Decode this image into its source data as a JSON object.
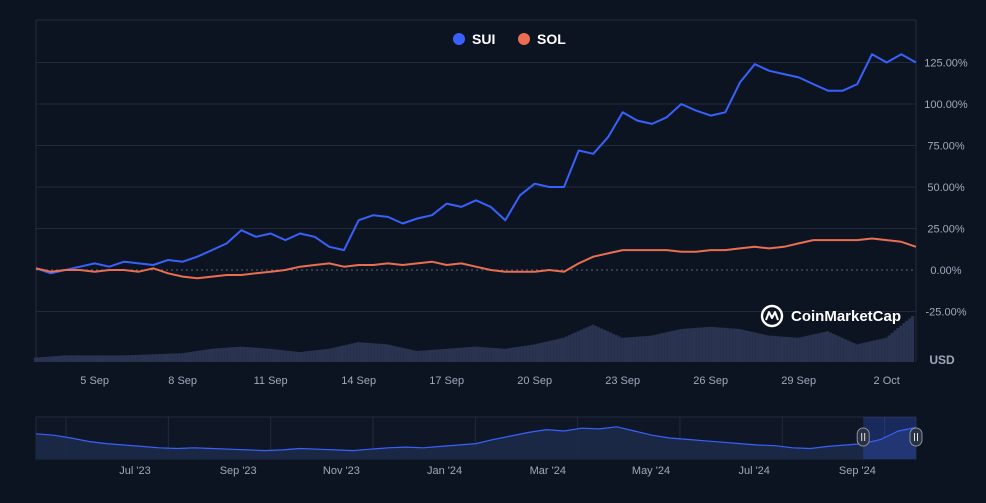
{
  "colors": {
    "background": "#0d1421",
    "grid": "#222b3d",
    "text": "#a1a7bb",
    "legend_text": "#ffffff",
    "sui": "#3861fb",
    "sol": "#ea6e52",
    "volume": "#2a3350"
  },
  "watermark": {
    "text": "CoinMarketCap",
    "icon": "coinmarketcap-logo-icon"
  },
  "currency_label": "USD",
  "chart_data": [
    {
      "type": "line",
      "title": "",
      "legend": [
        {
          "name": "SUI",
          "color": "#3861fb"
        },
        {
          "name": "SOL",
          "color": "#ea6e52"
        }
      ],
      "legend_position": "top-center",
      "x_ticks": [
        "5 Sep",
        "8 Sep",
        "11 Sep",
        "14 Sep",
        "17 Sep",
        "20 Sep",
        "23 Sep",
        "26 Sep",
        "29 Sep",
        "2 Oct"
      ],
      "y_ticks": [
        "125.00%",
        "100.00%",
        "75.00%",
        "50.00%",
        "25.00%",
        "0.00%",
        "-25.00%"
      ],
      "y_tick_values": [
        125,
        100,
        75,
        50,
        25,
        0,
        -25
      ],
      "ylim": [
        -40,
        150
      ],
      "x_range_days": [
        0,
        30
      ],
      "ylabel": "USD",
      "series": [
        {
          "name": "SUI",
          "x": [
            0,
            0.5,
            1,
            1.5,
            2,
            2.5,
            3,
            3.5,
            4,
            4.5,
            5,
            5.5,
            6,
            6.5,
            7,
            7.5,
            8,
            8.5,
            9,
            9.5,
            10,
            10.5,
            11,
            11.5,
            12,
            12.5,
            13,
            13.5,
            14,
            14.5,
            15,
            15.5,
            16,
            16.5,
            17,
            17.5,
            18,
            18.5,
            19,
            19.5,
            20,
            20.5,
            21,
            21.5,
            22,
            22.5,
            23,
            23.5,
            24,
            24.5,
            25,
            25.5,
            26,
            26.5,
            27,
            27.5,
            28,
            28.5,
            29,
            29.5,
            30
          ],
          "values": [
            1,
            -2,
            0,
            2,
            4,
            2,
            5,
            4,
            3,
            6,
            5,
            8,
            12,
            16,
            24,
            20,
            22,
            18,
            22,
            20,
            14,
            12,
            30,
            33,
            32,
            28,
            31,
            33,
            40,
            38,
            42,
            38,
            30,
            45,
            52,
            50,
            50,
            72,
            70,
            80,
            95,
            90,
            88,
            92,
            100,
            96,
            93,
            95,
            113,
            124,
            120,
            118,
            116,
            112,
            108,
            108,
            112,
            130,
            125,
            130,
            125
          ]
        },
        {
          "name": "SOL",
          "x": [
            0,
            0.5,
            1,
            1.5,
            2,
            2.5,
            3,
            3.5,
            4,
            4.5,
            5,
            5.5,
            6,
            6.5,
            7,
            7.5,
            8,
            8.5,
            9,
            9.5,
            10,
            10.5,
            11,
            11.5,
            12,
            12.5,
            13,
            13.5,
            14,
            14.5,
            15,
            15.5,
            16,
            16.5,
            17,
            17.5,
            18,
            18.5,
            19,
            19.5,
            20,
            20.5,
            21,
            21.5,
            22,
            22.5,
            23,
            23.5,
            24,
            24.5,
            25,
            25.5,
            26,
            26.5,
            27,
            27.5,
            28,
            28.5,
            29,
            29.5,
            30
          ],
          "values": [
            1,
            -1,
            0,
            0,
            -1,
            0,
            0,
            -1,
            1,
            -2,
            -4,
            -5,
            -4,
            -3,
            -3,
            -2,
            -1,
            0,
            2,
            3,
            4,
            2,
            3,
            3,
            4,
            3,
            4,
            5,
            3,
            4,
            2,
            0,
            -1,
            -1,
            -1,
            0,
            -1,
            4,
            8,
            10,
            12,
            12,
            12,
            12,
            11,
            11,
            12,
            12,
            13,
            14,
            13,
            14,
            16,
            18,
            18,
            18,
            18,
            19,
            18,
            17,
            14
          ]
        }
      ],
      "volume": {
        "x": [
          0,
          1,
          2,
          3,
          4,
          5,
          6,
          7,
          8,
          9,
          10,
          11,
          12,
          13,
          14,
          15,
          16,
          17,
          18,
          19,
          20,
          21,
          22,
          23,
          24,
          25,
          26,
          27,
          28,
          29,
          30
        ],
        "values": [
          4,
          6,
          6,
          6,
          7,
          8,
          12,
          14,
          12,
          9,
          12,
          18,
          16,
          10,
          12,
          14,
          12,
          16,
          22,
          34,
          22,
          24,
          30,
          32,
          30,
          24,
          22,
          28,
          16,
          22,
          44
        ]
      }
    },
    {
      "type": "area",
      "title": "",
      "x_ticks": [
        "Jul '23",
        "Sep '23",
        "Nov '23",
        "Jan '24",
        "Mar '24",
        "May '24",
        "Jul '24",
        "Sep '24"
      ],
      "ylim": [
        0,
        60
      ],
      "series": [
        {
          "name": "SUI",
          "x": [
            0,
            2,
            4,
            6,
            8,
            10,
            12,
            14,
            16,
            18,
            20,
            22,
            24,
            26,
            28,
            30,
            32,
            34,
            36,
            38,
            40,
            42,
            44,
            46,
            48,
            50,
            52,
            54,
            56,
            58,
            60,
            62,
            64,
            66,
            68,
            70,
            72,
            74,
            76,
            78,
            80,
            82,
            84,
            86,
            88,
            90,
            92,
            94,
            96,
            98,
            100
          ],
          "values": [
            36,
            34,
            30,
            25,
            22,
            20,
            18,
            16,
            15,
            16,
            15,
            14,
            13,
            12,
            13,
            15,
            14,
            13,
            12,
            14,
            16,
            17,
            16,
            18,
            20,
            22,
            28,
            33,
            38,
            42,
            40,
            44,
            43,
            46,
            40,
            34,
            30,
            28,
            26,
            24,
            22,
            20,
            19,
            16,
            15,
            18,
            20,
            22,
            28,
            40,
            45
          ]
        }
      ],
      "selection_range_percent": [
        94,
        100
      ]
    }
  ]
}
